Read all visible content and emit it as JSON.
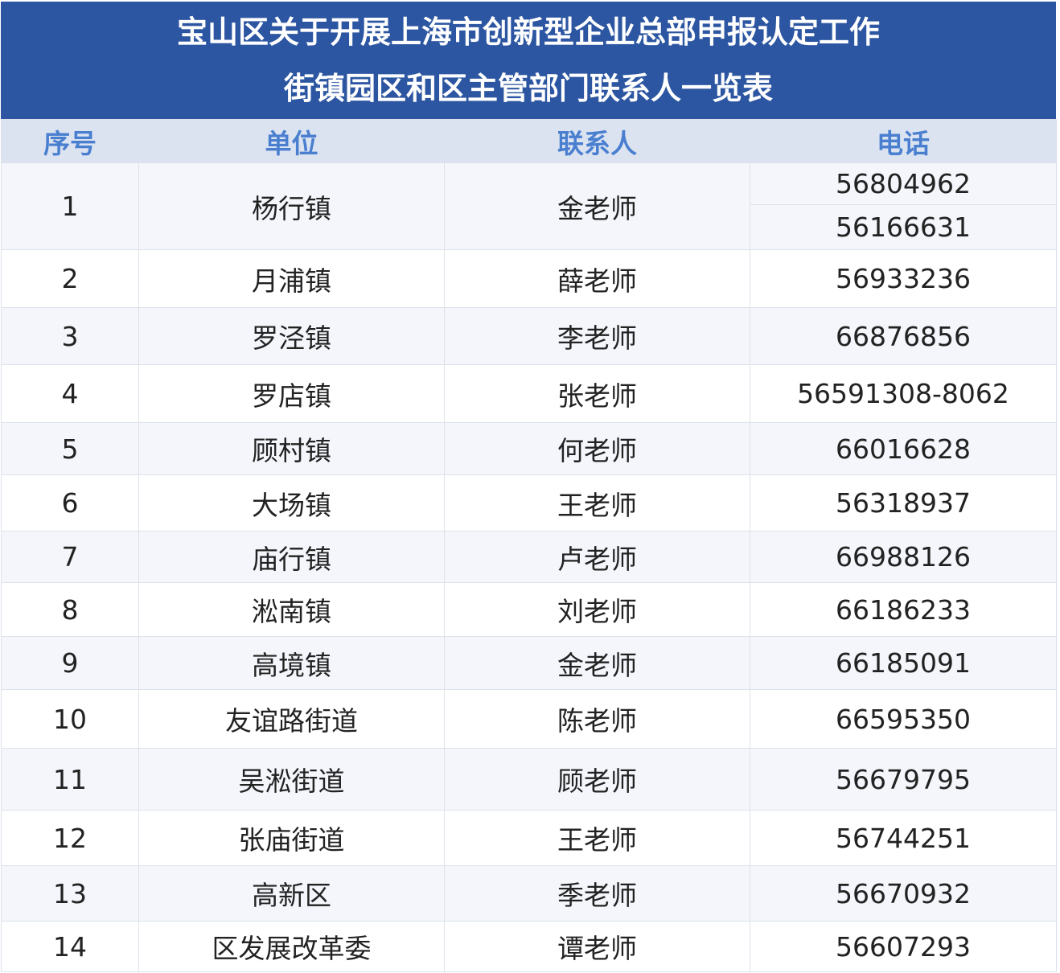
{
  "title": {
    "line1": "宝山区关于开展上海市创新型企业总部申报认定工作",
    "line2": "街镇园区和区主管部门联系人一览表"
  },
  "colors": {
    "title_bg": "#2c56a1",
    "header_bg": "#dbe3f1",
    "header_text": "#4a7fd0"
  },
  "headers": [
    "序号",
    "单位",
    "联系人",
    "电话"
  ],
  "rows": [
    {
      "no": "1",
      "unit": "杨行镇",
      "contact": "金老师",
      "phones": [
        "56804962",
        "56166631"
      ]
    },
    {
      "no": "2",
      "unit": "月浦镇",
      "contact": "薛老师",
      "phones": [
        "56933236"
      ]
    },
    {
      "no": "3",
      "unit": "罗泾镇",
      "contact": "李老师",
      "phones": [
        "66876856"
      ]
    },
    {
      "no": "4",
      "unit": "罗店镇",
      "contact": "张老师",
      "phones": [
        "56591308-8062"
      ]
    },
    {
      "no": "5",
      "unit": "顾村镇",
      "contact": "何老师",
      "phones": [
        "66016628"
      ]
    },
    {
      "no": "6",
      "unit": "大场镇",
      "contact": "王老师",
      "phones": [
        "56318937"
      ]
    },
    {
      "no": "7",
      "unit": "庙行镇",
      "contact": "卢老师",
      "phones": [
        "66988126"
      ]
    },
    {
      "no": "8",
      "unit": "淞南镇",
      "contact": "刘老师",
      "phones": [
        "66186233"
      ]
    },
    {
      "no": "9",
      "unit": "高境镇",
      "contact": "金老师",
      "phones": [
        "66185091"
      ]
    },
    {
      "no": "10",
      "unit": "友谊路街道",
      "contact": "陈老师",
      "phones": [
        "66595350"
      ]
    },
    {
      "no": "11",
      "unit": "吴淞街道",
      "contact": "顾老师",
      "phones": [
        "56679795"
      ]
    },
    {
      "no": "12",
      "unit": "张庙街道",
      "contact": "王老师",
      "phones": [
        "56744251"
      ]
    },
    {
      "no": "13",
      "unit": "高新区",
      "contact": "季老师",
      "phones": [
        "56670932"
      ]
    },
    {
      "no": "14",
      "unit": "区发展改革委",
      "contact": "谭老师",
      "phones": [
        "56607293"
      ]
    }
  ]
}
